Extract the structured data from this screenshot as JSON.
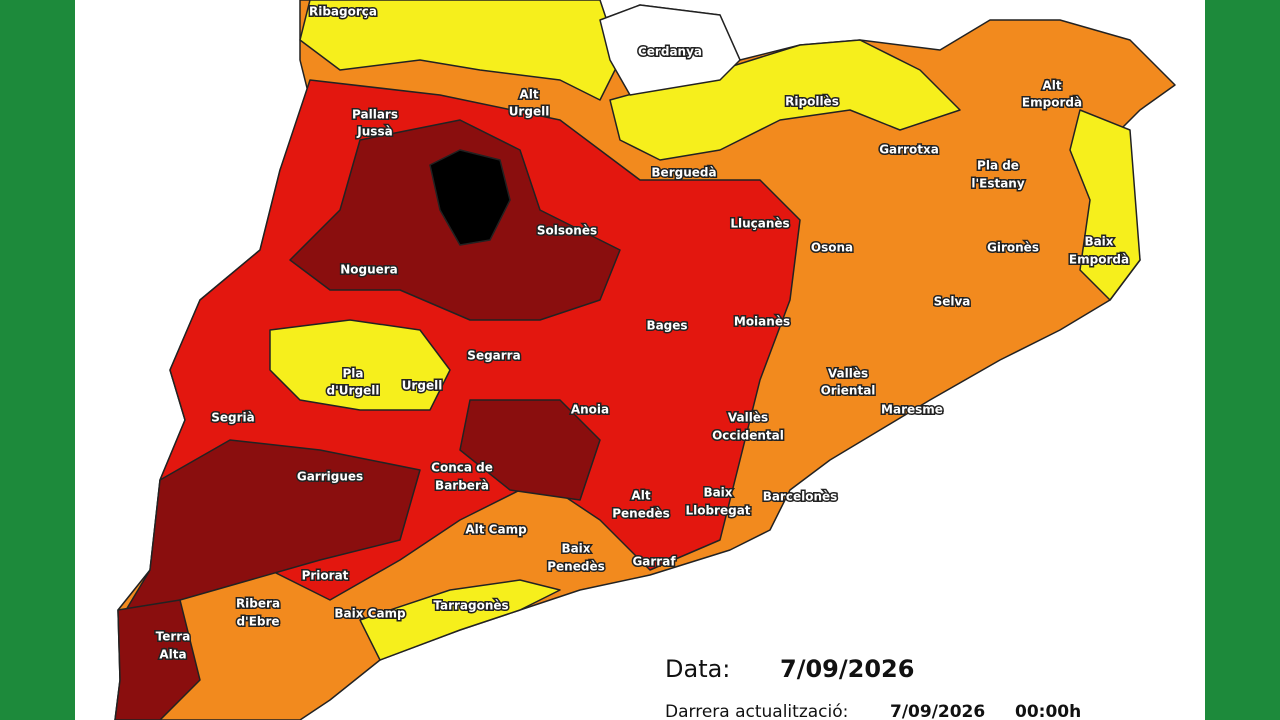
{
  "regions": [
    [
      "Ribagorça"
    ],
    [
      "Cerdanya"
    ],
    [
      "Alt",
      "Urgell"
    ],
    [
      "Ripollès"
    ],
    [
      "Alt",
      "Empordà"
    ],
    [
      "Pallars",
      "Jussà"
    ],
    [
      "Garrotxa"
    ],
    [
      "Pla de",
      "l'Estany"
    ],
    [
      "Berguedà"
    ],
    [
      "Lluçanès"
    ],
    [
      "Solsonès"
    ],
    [
      "Osona"
    ],
    [
      "Gironès"
    ],
    [
      "Baix",
      "Empordà"
    ],
    [
      "Noguera"
    ],
    [
      "Selva"
    ],
    [
      "Bages"
    ],
    [
      "Moianès"
    ],
    [
      "Segarra"
    ],
    [
      "Pla",
      "d'Urgell"
    ],
    [
      "Urgell"
    ],
    [
      "Vallès",
      "Oriental"
    ],
    [
      "Maresme"
    ],
    [
      "Segrià"
    ],
    [
      "Anoia"
    ],
    [
      "Vallès",
      "Occidental"
    ],
    [
      "Garrigues"
    ],
    [
      "Conca de",
      "Barberà"
    ],
    [
      "Alt",
      "Penedès"
    ],
    [
      "Baix",
      "Llobregat"
    ],
    [
      "Barcelonès"
    ],
    [
      "Alt Camp"
    ],
    [
      "Baix",
      "Penedès"
    ],
    [
      "Garraf"
    ],
    [
      "Priorat"
    ],
    [
      "Ribera",
      "d'Ebre"
    ],
    [
      "Baix Camp"
    ],
    [
      "Tarragonès"
    ],
    [
      "Terra",
      "Alta"
    ]
  ],
  "info": {
    "date_label": "Data:",
    "date": "7/09/2026",
    "update_label": "Darrera actualització:",
    "update_date": "7/09/2026",
    "update_time": "00:00h"
  }
}
